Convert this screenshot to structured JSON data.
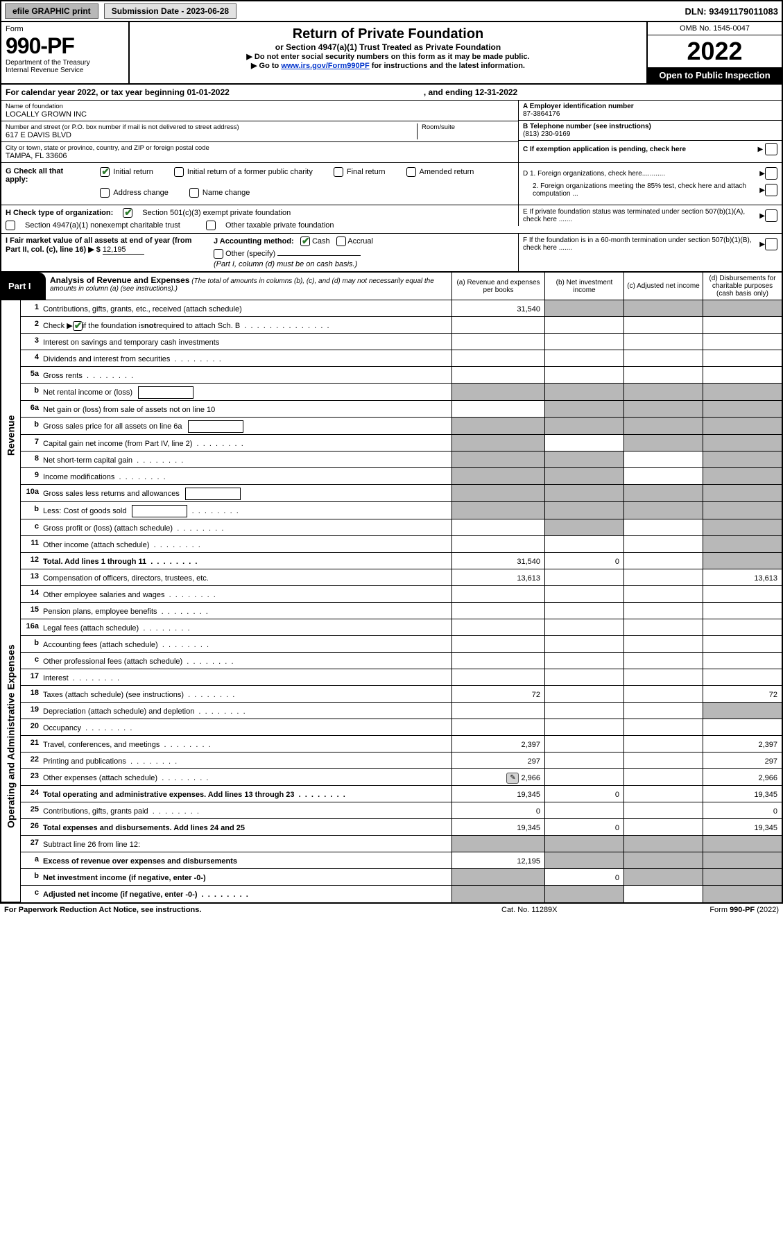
{
  "topbar": {
    "efile": "efile GRAPHIC print",
    "submission": "Submission Date - 2023-06-28",
    "dln": "DLN: 93491179011083"
  },
  "header": {
    "form_label": "Form",
    "form_no": "990-PF",
    "dept1": "Department of the Treasury",
    "dept2": "Internal Revenue Service",
    "title": "Return of Private Foundation",
    "subtitle": "or Section 4947(a)(1) Trust Treated as Private Foundation",
    "warn1": "▶ Do not enter social security numbers on this form as it may be made public.",
    "warn2_pre": "▶ Go to ",
    "warn2_link": "www.irs.gov/Form990PF",
    "warn2_post": " for instructions and the latest information.",
    "omb": "OMB No. 1545-0047",
    "year": "2022",
    "open": "Open to Public Inspection"
  },
  "calyear": {
    "text": "For calendar year 2022, or tax year beginning 01-01-2022",
    "end": ", and ending 12-31-2022"
  },
  "info": {
    "name_lbl": "Name of foundation",
    "name": "LOCALLY GROWN INC",
    "addr_lbl": "Number and street (or P.O. box number if mail is not delivered to street address)",
    "addr": "617 E DAVIS BLVD",
    "room_lbl": "Room/suite",
    "city_lbl": "City or town, state or province, country, and ZIP or foreign postal code",
    "city": "TAMPA, FL  33606",
    "ein_lbl": "A Employer identification number",
    "ein": "87-3864176",
    "tel_lbl": "B Telephone number (see instructions)",
    "tel": "(813) 230-9169",
    "c_lbl": "C If exemption application is pending, check here"
  },
  "g": {
    "lbl": "G Check all that apply:",
    "opts": [
      "Initial return",
      "Initial return of a former public charity",
      "Final return",
      "Amended return",
      "Address change",
      "Name change"
    ],
    "d1": "D 1. Foreign organizations, check here............",
    "d2": "2. Foreign organizations meeting the 85% test, check here and attach computation ..."
  },
  "h": {
    "lbl": "H Check type of organization:",
    "o1": "Section 501(c)(3) exempt private foundation",
    "o2": "Section 4947(a)(1) nonexempt charitable trust",
    "o3": "Other taxable private foundation",
    "e": "E  If private foundation status was terminated under section 507(b)(1)(A), check here ......."
  },
  "i": {
    "lbl": "I Fair market value of all assets at end of year (from Part II, col. (c), line 16) ▶ $",
    "val": "12,195",
    "j_lbl": "J Accounting method:",
    "j_cash": "Cash",
    "j_acc": "Accrual",
    "j_other": "Other (specify)",
    "j_note": "(Part I, column (d) must be on cash basis.)",
    "f": "F  If the foundation is in a 60-month termination under section 507(b)(1)(B), check here ......."
  },
  "part1": {
    "label": "Part I",
    "title": "Analysis of Revenue and Expenses",
    "note": "(The total of amounts in columns (b), (c), and (d) may not necessarily equal the amounts in column (a) (see instructions).)",
    "col_a": "(a)   Revenue and expenses per books",
    "col_b": "(b)   Net investment income",
    "col_c": "(c)   Adjusted net income",
    "col_d": "(d)  Disbursements for charitable purposes (cash basis only)"
  },
  "side": {
    "rev": "Revenue",
    "exp": "Operating and Administrative Expenses"
  },
  "rows": [
    {
      "n": "1",
      "d": "Contributions, gifts, grants, etc., received (attach schedule)",
      "a": "31,540",
      "sb": true,
      "sc": true,
      "sd": true
    },
    {
      "n": "2",
      "d": "Check ▶ [ck] if the foundation is not required to attach Sch. B",
      "nocols": true,
      "ck": true
    },
    {
      "n": "3",
      "d": "Interest on savings and temporary cash investments"
    },
    {
      "n": "4",
      "d": "Dividends and interest from securities",
      "dots": true
    },
    {
      "n": "5a",
      "d": "Gross rents",
      "dots": true
    },
    {
      "n": "b",
      "d": "Net rental income or (loss)",
      "inbox": true,
      "sa": true,
      "sb": true,
      "sc": true,
      "sd": true,
      "allshade": true
    },
    {
      "n": "6a",
      "d": "Net gain or (loss) from sale of assets not on line 10",
      "sb": true,
      "sc": true,
      "sd": true
    },
    {
      "n": "b",
      "d": "Gross sales price for all assets on line 6a",
      "inbox": true,
      "allshade": true,
      "sa": true,
      "sb": true,
      "sc": true,
      "sd": true
    },
    {
      "n": "7",
      "d": "Capital gain net income (from Part IV, line 2)",
      "dots": true,
      "sa": true,
      "sc": true,
      "sd": true
    },
    {
      "n": "8",
      "d": "Net short-term capital gain",
      "dots": true,
      "sa": true,
      "sb": true,
      "sd": true
    },
    {
      "n": "9",
      "d": "Income modifications",
      "dots": true,
      "sa": true,
      "sb": true,
      "sd": true
    },
    {
      "n": "10a",
      "d": "Gross sales less returns and allowances",
      "inbox": true,
      "allshade": true,
      "sa": true,
      "sb": true,
      "sc": true,
      "sd": true
    },
    {
      "n": "b",
      "d": "Less: Cost of goods sold",
      "dots": true,
      "inbox": true,
      "allshade": true,
      "sa": true,
      "sb": true,
      "sc": true,
      "sd": true
    },
    {
      "n": "c",
      "d": "Gross profit or (loss) (attach schedule)",
      "dots": true,
      "sb": true,
      "sd": true
    },
    {
      "n": "11",
      "d": "Other income (attach schedule)",
      "dots": true,
      "sd": true
    },
    {
      "n": "12",
      "d": "Total. Add lines 1 through 11",
      "dots": true,
      "bold": true,
      "a": "31,540",
      "b": "0",
      "sd": true
    },
    {
      "n": "13",
      "d": "Compensation of officers, directors, trustees, etc.",
      "a": "13,613",
      "dv": "13,613"
    },
    {
      "n": "14",
      "d": "Other employee salaries and wages",
      "dots": true
    },
    {
      "n": "15",
      "d": "Pension plans, employee benefits",
      "dots": true
    },
    {
      "n": "16a",
      "d": "Legal fees (attach schedule)",
      "dots": true
    },
    {
      "n": "b",
      "d": "Accounting fees (attach schedule)",
      "dots": true
    },
    {
      "n": "c",
      "d": "Other professional fees (attach schedule)",
      "dots": true
    },
    {
      "n": "17",
      "d": "Interest",
      "dots": true
    },
    {
      "n": "18",
      "d": "Taxes (attach schedule) (see instructions)",
      "dots": true,
      "a": "72",
      "dv": "72"
    },
    {
      "n": "19",
      "d": "Depreciation (attach schedule) and depletion",
      "dots": true,
      "sd": true
    },
    {
      "n": "20",
      "d": "Occupancy",
      "dots": true
    },
    {
      "n": "21",
      "d": "Travel, conferences, and meetings",
      "dots": true,
      "a": "2,397",
      "dv": "2,397"
    },
    {
      "n": "22",
      "d": "Printing and publications",
      "dots": true,
      "a": "297",
      "dv": "297"
    },
    {
      "n": "23",
      "d": "Other expenses (attach schedule)",
      "dots": true,
      "a": "2,966",
      "dv": "2,966",
      "icon": true
    },
    {
      "n": "24",
      "d": "Total operating and administrative expenses. Add lines 13 through 23",
      "dots": true,
      "bold": true,
      "a": "19,345",
      "b": "0",
      "dv": "19,345"
    },
    {
      "n": "25",
      "d": "Contributions, gifts, grants paid",
      "dots": true,
      "a": "0",
      "dv": "0"
    },
    {
      "n": "26",
      "d": "Total expenses and disbursements. Add lines 24 and 25",
      "bold": true,
      "a": "19,345",
      "b": "0",
      "dv": "19,345"
    },
    {
      "n": "27",
      "d": "Subtract line 26 from line 12:",
      "sa": true,
      "sb": true,
      "sc": true,
      "sd": true,
      "allshade": true
    },
    {
      "n": "a",
      "d": "Excess of revenue over expenses and disbursements",
      "bold": true,
      "a": "12,195",
      "sb": true,
      "sc": true,
      "sd": true
    },
    {
      "n": "b",
      "d": "Net investment income (if negative, enter -0-)",
      "bold": true,
      "sa": true,
      "b": "0",
      "sc": true,
      "sd": true
    },
    {
      "n": "c",
      "d": "Adjusted net income (if negative, enter -0-)",
      "bold": true,
      "dots": true,
      "sa": true,
      "sb": true,
      "sd": true
    }
  ],
  "footer": {
    "left": "For Paperwork Reduction Act Notice, see instructions.",
    "mid": "Cat. No. 11289X",
    "right": "Form 990-PF (2022)"
  },
  "colors": {
    "shade": "#b8b8b8",
    "black": "#000000",
    "link": "#0033cc",
    "check": "#2a7a2a"
  }
}
